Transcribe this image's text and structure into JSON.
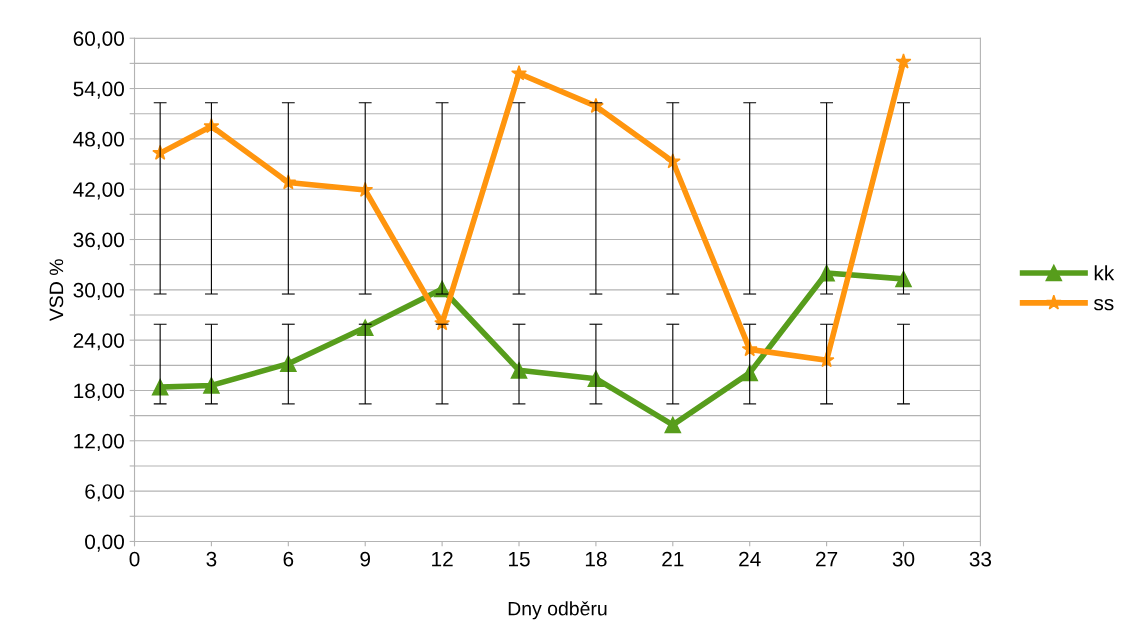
{
  "chart_data": {
    "type": "line",
    "xlabel": "Dny odběru",
    "ylabel": "VSD %",
    "x": [
      1,
      3,
      6,
      9,
      12,
      15,
      18,
      21,
      24,
      27,
      30
    ],
    "series": [
      {
        "name": "kk",
        "color": "#579d1c",
        "marker": "triangle",
        "values": [
          18.4,
          18.6,
          21.2,
          25.5,
          30.1,
          20.4,
          19.4,
          13.9,
          20.1,
          32.0,
          31.3
        ],
        "errors": [
          [
            16.4,
            25.9
          ],
          [
            16.4,
            25.9
          ],
          [
            16.4,
            25.9
          ],
          [
            16.4,
            25.9
          ],
          [
            16.4,
            25.9
          ],
          [
            16.4,
            25.9
          ],
          [
            16.4,
            25.9
          ],
          [
            16.4,
            25.9
          ],
          [
            16.4,
            25.9
          ],
          [
            16.4,
            25.9
          ],
          [
            16.4,
            25.9
          ]
        ]
      },
      {
        "name": "ss",
        "color": "#ff950e",
        "marker": "star",
        "values": [
          46.3,
          49.5,
          42.8,
          41.9,
          26.0,
          55.8,
          51.9,
          45.3,
          22.9,
          21.6,
          57.2
        ],
        "errors": [
          [
            29.5,
            52.3
          ],
          [
            29.5,
            52.3
          ],
          [
            29.5,
            52.3
          ],
          [
            29.5,
            52.3
          ],
          [
            29.5,
            52.3
          ],
          [
            29.5,
            52.3
          ],
          [
            29.5,
            52.3
          ],
          [
            29.5,
            52.3
          ],
          [
            29.5,
            52.3
          ],
          [
            29.5,
            52.3
          ],
          [
            29.5,
            52.3
          ]
        ]
      }
    ],
    "xlim": [
      0,
      33
    ],
    "xticks": [
      0,
      3,
      6,
      9,
      12,
      15,
      18,
      21,
      24,
      27,
      30,
      33
    ],
    "ylim": [
      0,
      60
    ],
    "yticks": [
      {
        "value": 0,
        "label": "0,00"
      },
      {
        "value": 3,
        "label": null
      },
      {
        "value": 6,
        "label": "6,00"
      },
      {
        "value": 9,
        "label": null
      },
      {
        "value": 12,
        "label": "12,00"
      },
      {
        "value": 15,
        "label": null
      },
      {
        "value": 18,
        "label": "18,00"
      },
      {
        "value": 21,
        "label": null
      },
      {
        "value": 24,
        "label": "24,00"
      },
      {
        "value": 27,
        "label": null
      },
      {
        "value": 30,
        "label": "30,00"
      },
      {
        "value": 33,
        "label": null
      },
      {
        "value": 36,
        "label": "36,00"
      },
      {
        "value": 39,
        "label": null
      },
      {
        "value": 42,
        "label": "42,00"
      },
      {
        "value": 45,
        "label": null
      },
      {
        "value": 48,
        "label": "48,00"
      },
      {
        "value": 51,
        "label": null
      },
      {
        "value": 54,
        "label": "54,00"
      },
      {
        "value": 57,
        "label": null
      },
      {
        "value": 60,
        "label": "60,00"
      }
    ],
    "grid": "y",
    "legend": "right",
    "line_style": "solid"
  }
}
